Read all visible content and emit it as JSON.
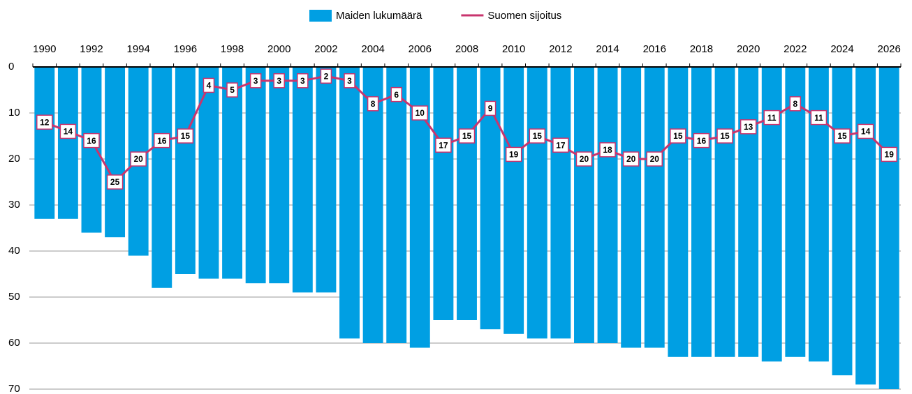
{
  "chart_data": {
    "type": "bar",
    "categories": [
      "1990",
      null,
      "1992",
      null,
      "1994",
      null,
      "1996",
      null,
      "1998",
      null,
      "2000",
      null,
      "2002",
      null,
      "2004",
      null,
      "2006",
      null,
      "2008",
      null,
      "2010",
      null,
      "2012",
      null,
      "2014",
      null,
      "2016",
      null,
      "2018",
      null,
      "2020",
      null,
      "2022",
      null,
      "2024",
      null,
      "2026"
    ],
    "series": [
      {
        "name": "Maiden lukumäärä",
        "type": "bar",
        "color": "#009fe3",
        "values": [
          33,
          33,
          36,
          37,
          41,
          48,
          45,
          46,
          46,
          47,
          47,
          49,
          49,
          59,
          60,
          60,
          61,
          55,
          55,
          57,
          58,
          59,
          59,
          60,
          60,
          61,
          61,
          63,
          63,
          63,
          63,
          64,
          63,
          64,
          67,
          69,
          70
        ]
      },
      {
        "name": "Suomen sijoitus",
        "type": "line",
        "color": "#c8356e",
        "values": [
          12,
          14,
          16,
          25,
          20,
          16,
          15,
          4,
          5,
          3,
          3,
          3,
          2,
          3,
          8,
          6,
          10,
          17,
          15,
          9,
          19,
          15,
          17,
          20,
          18,
          20,
          20,
          15,
          16,
          15,
          13,
          11,
          8,
          11,
          15,
          14,
          19
        ]
      }
    ],
    "ylim": [
      0,
      70
    ],
    "yticks": [
      0,
      10,
      20,
      30,
      40,
      50,
      60,
      70
    ],
    "y_inverted": true,
    "grid": true,
    "legend": "top"
  }
}
